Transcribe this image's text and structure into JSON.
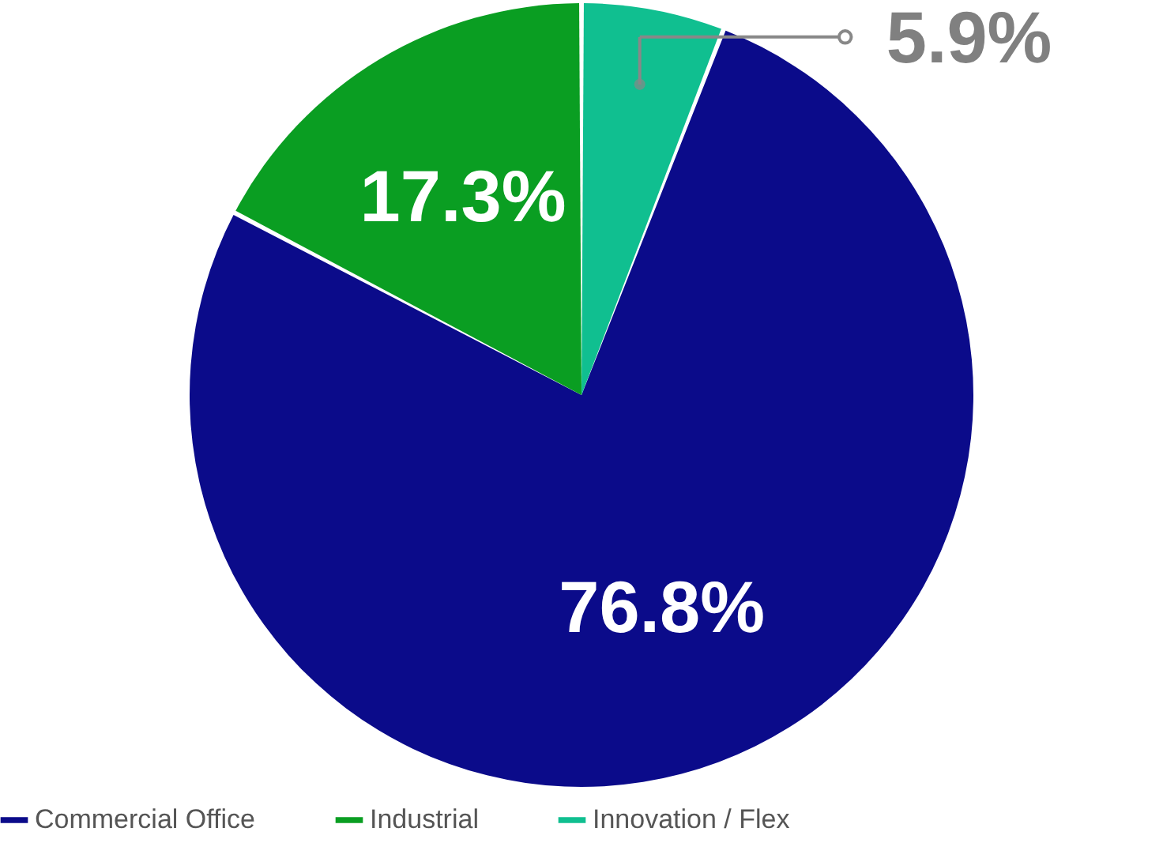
{
  "chart_data": {
    "type": "pie",
    "categories": [
      "Commercial Office",
      "Industrial",
      "Innovation / Flex"
    ],
    "values": [
      76.8,
      17.3,
      5.9
    ],
    "colors": [
      "#0b0b8a",
      "#0a9e22",
      "#10bf90"
    ],
    "value_labels": [
      "76.8%",
      "17.3%",
      "5.9%"
    ],
    "legend": "bottom"
  }
}
